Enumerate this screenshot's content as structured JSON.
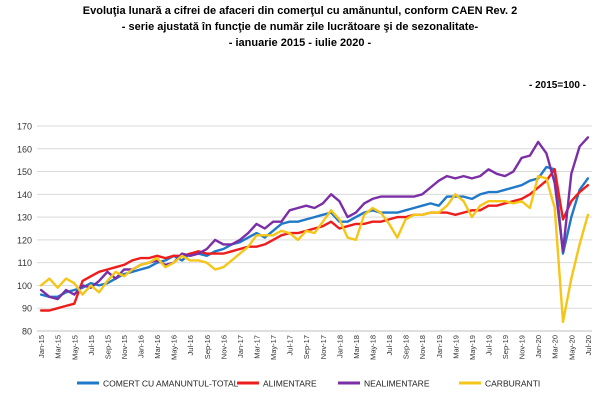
{
  "title_lines": [
    "Evoluţia lunară a cifrei de afaceri din comerţul cu amănuntul,  conform CAEN Rev. 2",
    "- serie ajustată în funcţie de număr zile lucrătoare şi de sezonalitate-",
    "- ianuarie 2015 -  iulie 2020  -"
  ],
  "base_note": "- 2015=100 -",
  "chart_data": {
    "type": "line",
    "title": "Evoluţia lunară a cifrei de afaceri din comerţul cu amănuntul,  conform CAEN Rev. 2",
    "xlabel": "",
    "ylabel": "",
    "ylim": [
      80,
      170
    ],
    "yticks": [
      80,
      90,
      100,
      110,
      120,
      130,
      140,
      150,
      160,
      170
    ],
    "grid": "horizontal",
    "legend_position": "bottom",
    "categories": [
      "Jan-15",
      "Feb-15",
      "Mar-15",
      "Apr-15",
      "May-15",
      "Jun-15",
      "Jul-15",
      "Aug-15",
      "Sep-15",
      "Oct-15",
      "Nov-15",
      "Dec-15",
      "Jan-16",
      "Feb-16",
      "Mar-16",
      "Apr-16",
      "May-16",
      "Jun-16",
      "Jul-16",
      "Aug-16",
      "Sep-16",
      "Oct-16",
      "Nov-16",
      "Dec-16",
      "Jan-17",
      "Feb-17",
      "Mar-17",
      "Apr-17",
      "May-17",
      "Jun-17",
      "Jul-17",
      "Aug-17",
      "Sep-17",
      "Oct-17",
      "Nov-17",
      "Dec-17",
      "Jan-18",
      "Feb-18",
      "Mar-18",
      "Apr-18",
      "May-18",
      "Jun-18",
      "Jul-18",
      "Aug-18",
      "Sep-18",
      "Oct-18",
      "Nov-18",
      "Dec-18",
      "Jan-19",
      "Feb-19",
      "Mar-19",
      "Apr-19",
      "May-19",
      "Jun-19",
      "Jul-19",
      "Aug-19",
      "Sep-19",
      "Oct-19",
      "Nov-19",
      "Dec-19",
      "Jan-20",
      "Feb-20",
      "Mar-20",
      "Apr-20",
      "May-20",
      "Jun-20",
      "Jul-20"
    ],
    "tick_labels": [
      "Jan-15",
      "Mar-15",
      "May-15",
      "Jul-15",
      "Sep-15",
      "Nov-15",
      "Jan-16",
      "Mar-16",
      "May-16",
      "Jul-16",
      "Sep-16",
      "Nov-16",
      "Jan-17",
      "Mar-17",
      "May-17",
      "Jul-17",
      "Sep-17",
      "Nov-17",
      "Jan-18",
      "Mar-18",
      "May-18",
      "Jul-18",
      "Sep-18",
      "Nov-18",
      "Jan-19",
      "Mar-19",
      "May-19",
      "Jul-19",
      "Sep-19",
      "Nov-19",
      "Jan-20",
      "Mar-20",
      "May-20",
      "Jul-20"
    ],
    "series": [
      {
        "name": "COMERT CU AMANUNTUL-TOTAL",
        "color": "#1f78c8",
        "values": [
          96,
          95,
          95,
          97,
          98,
          99,
          101,
          100,
          101,
          103,
          105,
          106,
          107,
          108,
          110,
          111,
          113,
          111,
          114,
          114,
          113,
          115,
          116,
          118,
          119,
          121,
          123,
          121,
          124,
          127,
          128,
          128,
          129,
          130,
          131,
          132,
          128,
          128,
          130,
          132,
          133,
          132,
          132,
          132,
          133,
          134,
          135,
          136,
          135,
          139,
          139,
          139,
          138,
          140,
          141,
          141,
          142,
          143,
          144,
          146,
          147,
          152,
          151,
          114,
          130,
          142,
          147
        ]
      },
      {
        "name": "ALIMENTARE",
        "color": "#ee1c1c",
        "values": [
          89,
          89,
          90,
          91,
          92,
          102,
          104,
          106,
          107,
          108,
          109,
          111,
          112,
          112,
          113,
          112,
          113,
          113,
          114,
          115,
          114,
          114,
          114,
          115,
          116,
          117,
          117,
          118,
          120,
          122,
          123,
          123,
          124,
          125,
          126,
          128,
          125,
          126,
          127,
          127,
          128,
          128,
          129,
          130,
          130,
          131,
          131,
          132,
          132,
          132,
          131,
          132,
          133,
          133,
          135,
          135,
          136,
          137,
          138,
          140,
          143,
          146,
          151,
          129,
          137,
          141,
          144
        ]
      },
      {
        "name": "NEALIMENTARE",
        "color": "#7b2fa6",
        "values": [
          98,
          95,
          94,
          98,
          96,
          100,
          99,
          102,
          106,
          103,
          107,
          107,
          109,
          110,
          111,
          109,
          110,
          114,
          113,
          114,
          116,
          120,
          118,
          118,
          120,
          123,
          127,
          125,
          128,
          128,
          133,
          134,
          135,
          134,
          136,
          140,
          137,
          130,
          132,
          136,
          138,
          139,
          139,
          139,
          139,
          139,
          140,
          143,
          146,
          148,
          147,
          148,
          147,
          148,
          151,
          149,
          148,
          150,
          156,
          157,
          163,
          158,
          145,
          115,
          149,
          161,
          165
        ]
      },
      {
        "name": "CARBURANTI",
        "color": "#f5c518",
        "values": [
          100,
          103,
          99,
          103,
          101,
          96,
          100,
          97,
          102,
          106,
          104,
          107,
          109,
          110,
          112,
          108,
          110,
          113,
          111,
          111,
          110,
          107,
          108,
          111,
          114,
          117,
          122,
          122,
          122,
          124,
          123,
          120,
          124,
          123,
          128,
          133,
          129,
          121,
          120,
          131,
          134,
          132,
          127,
          121,
          129,
          131,
          131,
          132,
          132,
          135,
          140,
          137,
          130,
          135,
          137,
          137,
          137,
          136,
          137,
          134,
          148,
          147,
          134,
          84,
          103,
          118,
          131
        ]
      }
    ]
  }
}
